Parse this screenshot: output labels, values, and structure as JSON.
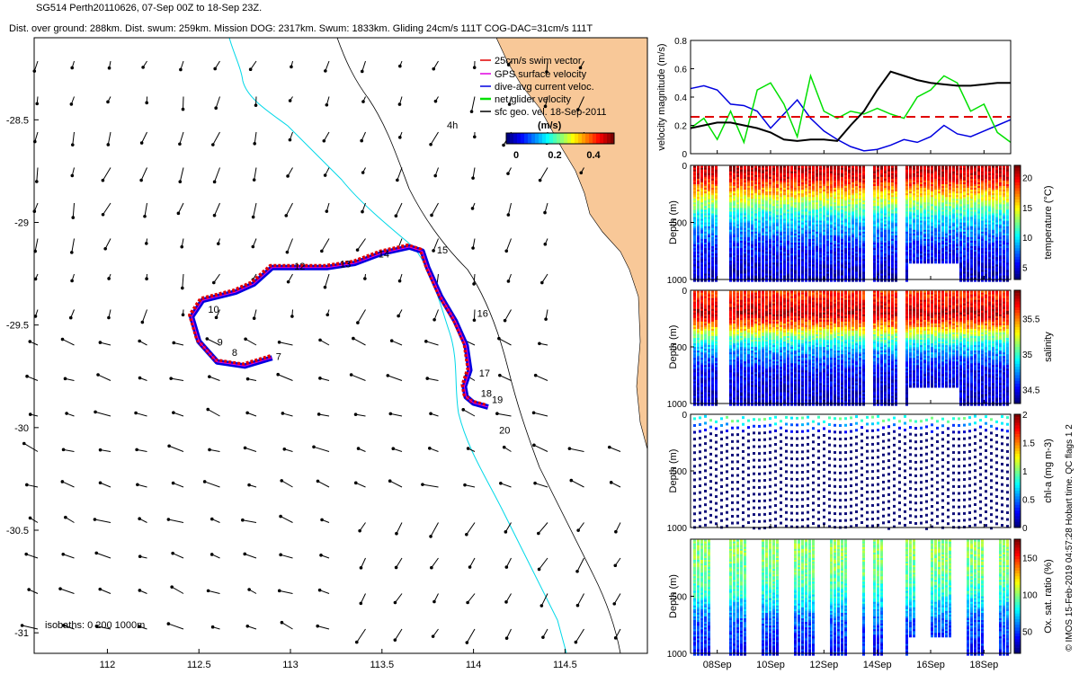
{
  "header": {
    "line1": "SG514 Perth20110626, 07-Sep 00Z to 18-Sep 23Z.",
    "line2": "Dist. over ground: 288km. Dist. swum: 259km. Mission DOG: 2317km. Swum: 1833km. Gliding 24cm/s 111T COG-DAC=31cm/s 111T"
  },
  "map": {
    "legend": [
      {
        "label": "25cm/s swim vector",
        "color": "#e00000"
      },
      {
        "label": "GPS surface velocity",
        "color": "#e000e0"
      },
      {
        "label": "dive-avg current veloc.",
        "color": "#0000e0"
      },
      {
        "label": "net glider velocity",
        "color": "#00e000"
      },
      {
        "label": "sfc geo. vel. 18-Sep-2011",
        "color": "#000000"
      }
    ],
    "time_tag": "4h",
    "colorbar": {
      "title": "(m/s)",
      "ticks": [
        "0",
        "0.2",
        "0.4"
      ]
    },
    "isobaths": "isobaths: 0   200   1000m",
    "colors": {
      "land": "#f8c898",
      "coast_line": "#00d8e8",
      "isobath": "#000000"
    }
  },
  "chart_data": [
    {
      "type": "scatter",
      "name": "glider-track-map",
      "xlim": [
        111.6,
        114.95
      ],
      "ylim": [
        -31.1,
        -28.1
      ],
      "x_ticks": [
        "112",
        "112.5",
        "113",
        "113.5",
        "114",
        "114.5"
      ],
      "y_ticks": [
        "-28.5",
        "-29",
        "-29.5",
        "-30",
        "-30.5",
        "-31"
      ],
      "track": [
        [
          112.9,
          -29.66
        ],
        [
          112.75,
          -29.7
        ],
        [
          112.6,
          -29.68
        ],
        [
          112.5,
          -29.58
        ],
        [
          112.46,
          -29.46
        ],
        [
          112.52,
          -29.38
        ],
        [
          112.7,
          -29.34
        ],
        [
          112.8,
          -29.3
        ],
        [
          112.9,
          -29.22
        ],
        [
          113.05,
          -29.22
        ],
        [
          113.2,
          -29.22
        ],
        [
          113.35,
          -29.2
        ],
        [
          113.5,
          -29.15
        ],
        [
          113.65,
          -29.12
        ],
        [
          113.72,
          -29.14
        ],
        [
          113.75,
          -29.22
        ],
        [
          113.82,
          -29.36
        ],
        [
          113.9,
          -29.48
        ],
        [
          113.96,
          -29.6
        ],
        [
          113.98,
          -29.72
        ],
        [
          113.95,
          -29.8
        ],
        [
          113.96,
          -29.85
        ],
        [
          114.0,
          -29.88
        ],
        [
          114.08,
          -29.9
        ]
      ],
      "day_labels": [
        {
          "label": "7",
          "lon": 112.92,
          "lat": -29.67
        },
        {
          "label": "8",
          "lon": 112.68,
          "lat": -29.65
        },
        {
          "label": "9",
          "lon": 112.6,
          "lat": -29.6
        },
        {
          "label": "10",
          "lon": 112.55,
          "lat": -29.44
        },
        {
          "label": "12",
          "lon": 113.02,
          "lat": -29.23
        },
        {
          "label": "13",
          "lon": 113.27,
          "lat": -29.22
        },
        {
          "label": "14",
          "lon": 113.48,
          "lat": -29.17
        },
        {
          "label": "15",
          "lon": 113.8,
          "lat": -29.15
        },
        {
          "label": "16",
          "lon": 114.02,
          "lat": -29.46
        },
        {
          "label": "17",
          "lon": 114.03,
          "lat": -29.75
        },
        {
          "label": "18",
          "lon": 114.04,
          "lat": -29.85
        },
        {
          "label": "19",
          "lon": 114.1,
          "lat": -29.88
        },
        {
          "label": "20",
          "lon": 114.14,
          "lat": -30.03
        }
      ]
    },
    {
      "type": "line",
      "name": "velocity-panel",
      "ylabel": "velocity magnitude (m/s)",
      "ylim": [
        0,
        0.8
      ],
      "y_ticks": [
        "0",
        "0.2",
        "0.4",
        "0.6",
        "0.8"
      ],
      "x_days": [
        7,
        7.5,
        8,
        8.5,
        9,
        9.5,
        10,
        10.5,
        11,
        11.5,
        12,
        12.5,
        13,
        13.5,
        14,
        14.5,
        15,
        15.5,
        16,
        16.5,
        17,
        17.5,
        18,
        18.5,
        19
      ],
      "series": [
        {
          "name": "dive-avg current veloc.",
          "color": "#0000e0",
          "values": [
            0.46,
            0.48,
            0.45,
            0.35,
            0.34,
            0.3,
            0.18,
            0.28,
            0.38,
            0.25,
            0.16,
            0.1,
            0.05,
            0.02,
            0.03,
            0.06,
            0.1,
            0.08,
            0.12,
            0.2,
            0.14,
            0.12,
            0.16,
            0.2,
            0.24
          ]
        },
        {
          "name": "net glider velocity",
          "color": "#00e000",
          "values": [
            0.18,
            0.25,
            0.1,
            0.3,
            0.08,
            0.45,
            0.5,
            0.35,
            0.12,
            0.55,
            0.3,
            0.25,
            0.3,
            0.28,
            0.32,
            0.28,
            0.25,
            0.4,
            0.45,
            0.55,
            0.5,
            0.3,
            0.35,
            0.15,
            0.08
          ]
        },
        {
          "name": "sfc geo. vel.",
          "color": "#000000",
          "values": [
            0.18,
            0.2,
            0.22,
            0.22,
            0.2,
            0.18,
            0.15,
            0.1,
            0.09,
            0.1,
            0.1,
            0.09,
            0.2,
            0.3,
            0.45,
            0.58,
            0.55,
            0.52,
            0.5,
            0.49,
            0.48,
            0.48,
            0.49,
            0.5,
            0.5
          ]
        },
        {
          "name": "25cm/s swim vector",
          "color": "#e00000",
          "dashed": true,
          "values": [
            0.26,
            0.26,
            0.26,
            0.26,
            0.26,
            0.26,
            0.26,
            0.26,
            0.26,
            0.26,
            0.26,
            0.26,
            0.26,
            0.26,
            0.26,
            0.26,
            0.26,
            0.26,
            0.26,
            0.26,
            0.26,
            0.26,
            0.26,
            0.26,
            0.26
          ]
        }
      ]
    },
    {
      "type": "heatmap",
      "name": "temperature-panel",
      "ylabel": "Depth (m)",
      "colorbar_label": "temperature (°C)",
      "cbar_ticks": [
        "20",
        "15",
        "10",
        "5"
      ],
      "cbar_range": [
        3,
        22
      ],
      "y_ticks": [
        "0",
        "500",
        "1000"
      ],
      "ylim": [
        0,
        1000
      ],
      "depth_levels": [
        0,
        100,
        200,
        300,
        400,
        500,
        700,
        1000
      ],
      "profile": [
        21,
        20,
        17,
        14,
        11,
        9,
        6,
        4
      ]
    },
    {
      "type": "heatmap",
      "name": "salinity-panel",
      "ylabel": "Depth (m)",
      "colorbar_label": "salinity",
      "cbar_ticks": [
        "35.5",
        "35",
        "34.5"
      ],
      "cbar_range": [
        34.3,
        35.9
      ],
      "y_ticks": [
        "0",
        "500",
        "1000"
      ],
      "ylim": [
        0,
        1000
      ],
      "depth_levels": [
        0,
        100,
        200,
        300,
        400,
        500,
        700,
        1000
      ],
      "profile": [
        35.6,
        35.7,
        35.8,
        35.5,
        35.1,
        34.8,
        34.5,
        34.4
      ]
    },
    {
      "type": "heatmap",
      "name": "chlorophyll-panel",
      "ylabel": "Depth (m)",
      "colorbar_label": "chl-a (mg m-3)",
      "cbar_ticks": [
        "2",
        "1.5",
        "1",
        "0.5",
        "0"
      ],
      "cbar_range": [
        0,
        2
      ],
      "y_ticks": [
        "0",
        "500",
        "1000"
      ],
      "ylim": [
        0,
        1000
      ],
      "depth_levels": [
        0,
        50,
        100,
        200,
        1000
      ],
      "profile": [
        0.8,
        0.9,
        0.3,
        0.05,
        0.0
      ]
    },
    {
      "type": "heatmap",
      "name": "oxygen-panel",
      "ylabel": "Depth (m)",
      "colorbar_label": "Ox. sat. ratio (%)",
      "cbar_ticks": [
        "150",
        "100",
        "50"
      ],
      "cbar_range": [
        20,
        175
      ],
      "y_ticks": [
        "500",
        "1000"
      ],
      "ylim": [
        0,
        1000
      ],
      "depth_levels": [
        0,
        100,
        300,
        500,
        700,
        1000
      ],
      "profile": [
        100,
        100,
        95,
        80,
        55,
        40
      ]
    },
    {
      "type": "axis",
      "name": "time-axis",
      "x_ticks": [
        "08Sep",
        "10Sep",
        "12Sep",
        "14Sep",
        "16Sep",
        "18Sep"
      ],
      "x_tick_days": [
        8,
        10,
        12,
        14,
        16,
        18
      ],
      "xlim_days": [
        7,
        19
      ]
    }
  ],
  "side_note": "QC flags 1  2",
  "credit": "© IMOS 15-Feb-2019 04:57:28 Hobart time."
}
